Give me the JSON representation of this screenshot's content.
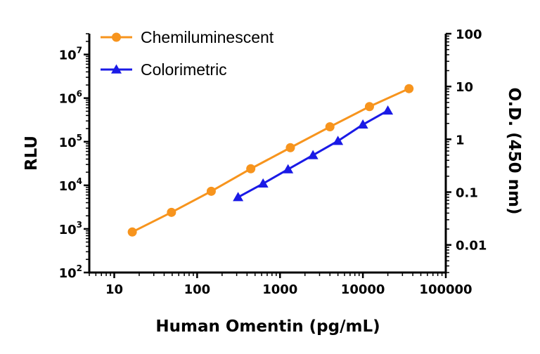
{
  "chart_data": {
    "type": "line",
    "xlabel": "Human Omentin (pg/mL)",
    "ylabel_left": "RLU",
    "ylabel_right": "O.D. (450 nm)",
    "x_scale": "log",
    "y_left_scale": "log",
    "y_right_scale": "log",
    "xlim": [
      5,
      100000
    ],
    "ylim_left": [
      100,
      30000000
    ],
    "ylim_right": [
      0.003,
      100
    ],
    "x_ticks": [
      {
        "value": 10,
        "label": "10"
      },
      {
        "value": 100,
        "label": "100"
      },
      {
        "value": 1000,
        "label": "1000"
      },
      {
        "value": 10000,
        "label": "10000"
      },
      {
        "value": 100000,
        "label": "100000"
      }
    ],
    "y_left_ticks": [
      {
        "value": 100,
        "base": "10",
        "exp": "2"
      },
      {
        "value": 1000,
        "base": "10",
        "exp": "3"
      },
      {
        "value": 10000,
        "base": "10",
        "exp": "4"
      },
      {
        "value": 100000,
        "base": "10",
        "exp": "5"
      },
      {
        "value": 1000000,
        "base": "10",
        "exp": "6"
      },
      {
        "value": 10000000,
        "base": "10",
        "exp": "7"
      }
    ],
    "y_right_ticks": [
      {
        "value": 0.01,
        "label": "0.01"
      },
      {
        "value": 0.1,
        "label": "0.1"
      },
      {
        "value": 1,
        "label": "1"
      },
      {
        "value": 10,
        "label": "10"
      },
      {
        "value": 100,
        "label": "100"
      }
    ],
    "legend_position": "top-left",
    "grid": false,
    "series": [
      {
        "name": "Chemiluminescent",
        "axis": "left",
        "marker": "circle",
        "color": "#F7941D",
        "x": [
          16.5,
          49,
          148,
          444,
          1333,
          4000,
          12000,
          36000
        ],
        "y": [
          850,
          2400,
          7300,
          24000,
          73000,
          220000,
          640000,
          1650000
        ]
      },
      {
        "name": "Colorimetric",
        "axis": "right",
        "marker": "triangle",
        "color": "#1A1AE6",
        "x": [
          312,
          625,
          1250,
          2500,
          5000,
          10000,
          20000
        ],
        "y": [
          0.08,
          0.145,
          0.27,
          0.5,
          0.93,
          1.9,
          3.5
        ]
      }
    ]
  }
}
